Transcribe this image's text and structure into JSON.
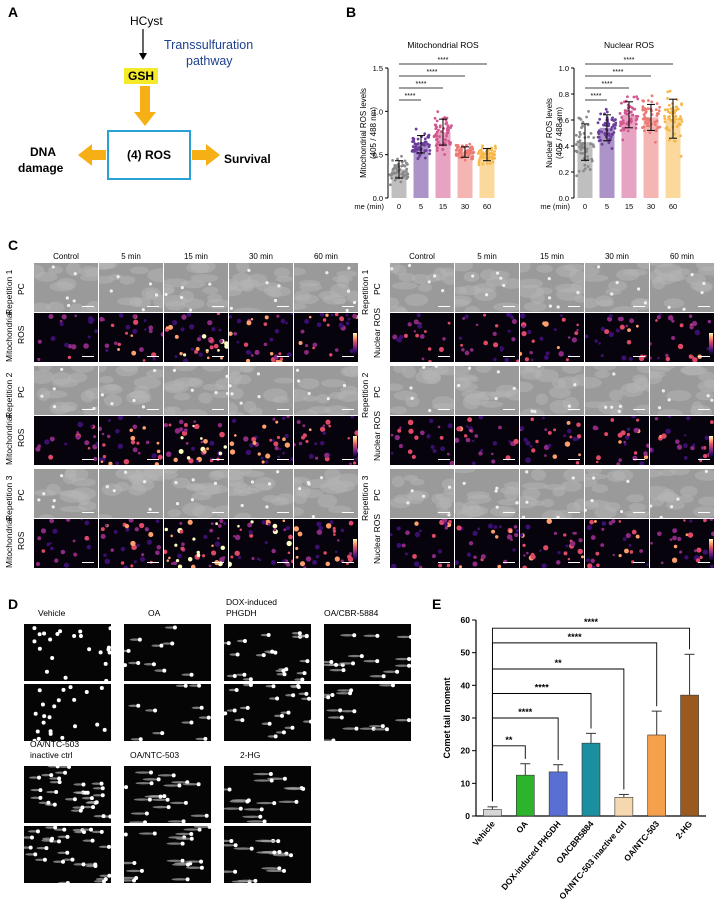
{
  "panels": {
    "A": "A",
    "B": "B",
    "C": "C",
    "D": "D",
    "E": "E"
  },
  "A": {
    "hcyst": "HCyst",
    "transsulfuration_line1": "Transsulfuration",
    "transsulfuration_line2": "pathway",
    "gsh": "GSH",
    "ros": "(4) ROS",
    "dna_line1": "DNA",
    "dna_line2": "damage",
    "survival": "Survival",
    "colors": {
      "gsh_bg": "#f5ea2a",
      "arrow": "#f6b015",
      "box": "#2aa1d6",
      "pathway_text": "#1d3f8f"
    }
  },
  "B": {
    "left": {
      "title": "Mitochondrial ROS",
      "ylabel_line1": "Mitochondrial ROS levels",
      "ylabel_line2": "(405 / 488 nm)",
      "xlabel": "Time (min)",
      "yticks": [
        "0.0",
        "0.5",
        "1.0",
        "1.5"
      ],
      "xticks": [
        "0",
        "5",
        "15",
        "30",
        "60"
      ]
    },
    "right": {
      "title": "Nuclear ROS",
      "ylabel_line1": "Nuclear ROS levels",
      "ylabel_line2": "(405 / 488 nm)",
      "xlabel": "Time (min)",
      "yticks": [
        "0.0",
        "0.2",
        "0.4",
        "0.6",
        "0.8",
        "1.0"
      ],
      "xticks": [
        "0",
        "5",
        "15",
        "30",
        "60"
      ]
    },
    "sig": "****"
  },
  "C": {
    "cols": [
      "Control",
      "5 min",
      "15 min",
      "30 min",
      "60 min"
    ],
    "reps": [
      "Repetition 1",
      "Repetition 2",
      "Repetition 3"
    ],
    "pc": "PC",
    "mito_line1": "Mitochondrial",
    "mito_line2": "ROS",
    "nuc": "Nuclear ROS"
  },
  "D": {
    "labels": [
      "Vehicle",
      "OA",
      "DOX-induced\nPHGDH",
      "OA/CBR-5884",
      "OA/NTC-503\ninactive ctrl",
      "OA/NTC-503",
      "2-HG"
    ],
    "label_lines": [
      [
        "Vehicle"
      ],
      [
        "OA"
      ],
      [
        "DOX-induced",
        "PHGDH"
      ],
      [
        "OA/CBR-5884"
      ],
      [
        "OA/NTC-503",
        "inactive ctrl"
      ],
      [
        "OA/NTC-503"
      ],
      [
        "2-HG"
      ]
    ]
  },
  "chart_data": [
    {
      "type": "bar",
      "title": "Mitochondrial ROS",
      "xlabel": "Time (min)",
      "ylabel": "Mitochondrial ROS levels (405 / 488 nm)",
      "categories": [
        "0",
        "5",
        "15",
        "30",
        "60"
      ],
      "values": [
        0.33,
        0.62,
        0.76,
        0.53,
        0.5
      ],
      "errors": [
        0.1,
        0.1,
        0.15,
        0.06,
        0.07
      ],
      "colors": [
        "#8a8a8a",
        "#6a3d9a",
        "#d3578f",
        "#ec7a74",
        "#f7b84a"
      ],
      "ylim": [
        0,
        1.5
      ],
      "significance": [
        [
          "0",
          "5",
          "****"
        ],
        [
          "0",
          "15",
          "****"
        ],
        [
          "0",
          "30",
          "****"
        ],
        [
          "0",
          "60",
          "****"
        ]
      ]
    },
    {
      "type": "bar",
      "title": "Nuclear ROS",
      "xlabel": "Time (min)",
      "ylabel": "Nuclear ROS levels (405 / 488 nm)",
      "categories": [
        "0",
        "5",
        "15",
        "30",
        "60"
      ],
      "values": [
        0.43,
        0.54,
        0.64,
        0.62,
        0.61
      ],
      "errors": [
        0.14,
        0.1,
        0.1,
        0.1,
        0.15
      ],
      "colors": [
        "#8a8a8a",
        "#6a3d9a",
        "#d3578f",
        "#ec7a74",
        "#f7b84a"
      ],
      "ylim": [
        0,
        1.0
      ],
      "significance": [
        [
          "0",
          "5",
          "****"
        ],
        [
          "0",
          "15",
          "****"
        ],
        [
          "0",
          "30",
          "****"
        ],
        [
          "0",
          "60",
          "****"
        ]
      ]
    },
    {
      "type": "bar",
      "title": "",
      "xlabel": "",
      "ylabel": "Comet tail moment",
      "categories": [
        "Vehicle",
        "OA",
        "DOX-induced PHGDH",
        "OA/CBR5884",
        "OA/NTC-503 inactive ctrl",
        "OA/NTC-503",
        "2-HG"
      ],
      "values": [
        2.0,
        12.5,
        13.5,
        22.3,
        5.7,
        24.8,
        37.0
      ],
      "errors": [
        0.8,
        3.5,
        2.2,
        3.0,
        0.9,
        7.3,
        12.5
      ],
      "colors": [
        "#d6d6d6",
        "#2cb52c",
        "#5a6fd3",
        "#1b8fa0",
        "#f5d8b0",
        "#f5a04a",
        "#9a5a1f"
      ],
      "ylim": [
        0,
        60
      ],
      "yticks": [
        "0",
        "10",
        "20",
        "30",
        "40",
        "50",
        "60"
      ],
      "significance": [
        [
          "Vehicle",
          "OA",
          "**"
        ],
        [
          "Vehicle",
          "DOX-induced PHGDH",
          "****"
        ],
        [
          "Vehicle",
          "OA/CBR5884",
          "****"
        ],
        [
          "Vehicle",
          "OA/NTC-503 inactive ctrl",
          "**"
        ],
        [
          "Vehicle",
          "OA/NTC-503",
          "****"
        ],
        [
          "Vehicle",
          "2-HG",
          "****"
        ]
      ]
    }
  ]
}
